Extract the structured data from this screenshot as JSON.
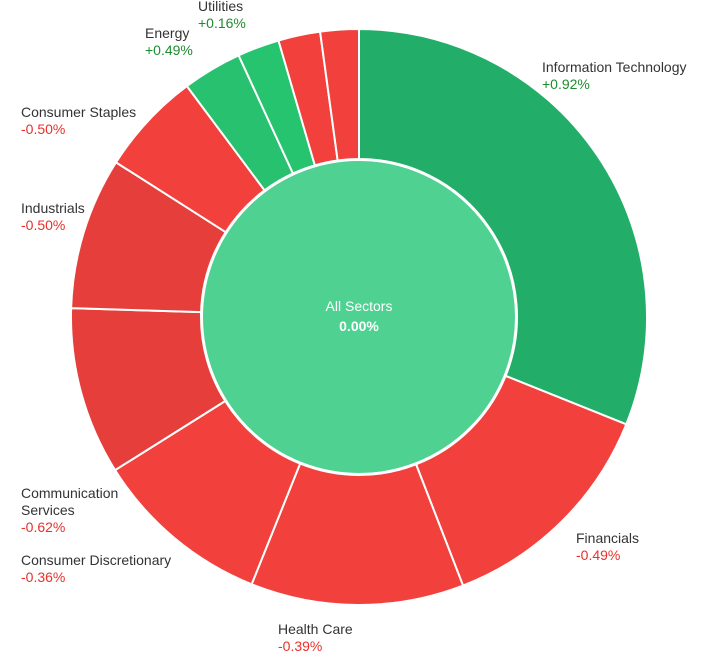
{
  "colors": {
    "up_strong": "#22ae68",
    "up_mid": "#27c16f",
    "up_light": "#26c46f",
    "down": "#f2403c",
    "down_dark": "#e63e3b",
    "center": "#4fd192",
    "up_text": "#1e8c2e",
    "down_text": "#e8302a"
  },
  "chart_data": {
    "type": "pie",
    "center": {
      "label": "All Sectors",
      "value": "0.00%"
    },
    "slices": [
      {
        "name": "Information Technology",
        "change": "+0.92%",
        "weight": 31.7,
        "direction": "up"
      },
      {
        "name": "Financials",
        "change": "-0.49%",
        "weight": 13.3,
        "direction": "down"
      },
      {
        "name": "Health Care",
        "change": "-0.39%",
        "weight": 12.2,
        "direction": "down"
      },
      {
        "name": "Consumer Discretionary",
        "change": "-0.36%",
        "weight": 10.2,
        "direction": "down"
      },
      {
        "name": "Communication Services",
        "change": "-0.62%",
        "weight": 9.6,
        "direction": "down"
      },
      {
        "name": "Industrials",
        "change": "-0.50%",
        "weight": 8.7,
        "direction": "down"
      },
      {
        "name": "Consumer Staples",
        "change": "-0.50%",
        "weight": 5.9,
        "direction": "down"
      },
      {
        "name": "Energy",
        "change": "+0.49%",
        "weight": 3.4,
        "direction": "up"
      },
      {
        "name": "Utilities",
        "change": "+0.16%",
        "weight": 2.4,
        "direction": "up"
      },
      {
        "name": "",
        "change": "",
        "weight": 2.4,
        "direction": "down"
      },
      {
        "name": "",
        "change": "",
        "weight": 2.2,
        "direction": "down"
      }
    ]
  }
}
